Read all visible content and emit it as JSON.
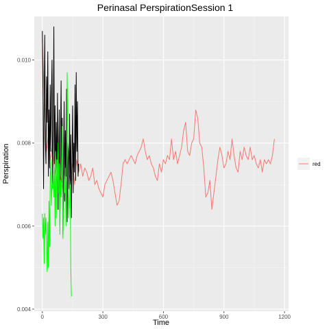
{
  "chart_data": {
    "type": "line",
    "title": "Perinasal PerspirationSession 1",
    "xlabel": "Time",
    "ylabel": "Perspiration",
    "xlim": [
      -40,
      1220
    ],
    "ylim": [
      0.00395,
      0.01105
    ],
    "x_ticks": [
      0,
      300,
      600,
      900,
      1200
    ],
    "x_tick_labels": [
      "0",
      "300",
      "600",
      "900",
      "1200"
    ],
    "y_ticks": [
      0.004,
      0.006,
      0.008,
      0.01
    ],
    "y_tick_labels": [
      "0.004",
      "0.006",
      "0.008",
      "0.010"
    ],
    "grid": true,
    "legend": {
      "position": "right",
      "entries": [
        {
          "label": "red",
          "color": "#F8766D"
        }
      ]
    },
    "series": [
      {
        "color": "#F8766D",
        "x": [
          0,
          10,
          20,
          30,
          40,
          50,
          60,
          70,
          80,
          90,
          100,
          110,
          120,
          130,
          140,
          150,
          160,
          170,
          180,
          190,
          200,
          210,
          220,
          230,
          240,
          250,
          260,
          270,
          280,
          290,
          300,
          310,
          320,
          330,
          340,
          350,
          360,
          370,
          380,
          390,
          400,
          410,
          420,
          430,
          440,
          450,
          460,
          470,
          480,
          490,
          500,
          510,
          520,
          530,
          540,
          550,
          560,
          570,
          580,
          590,
          600,
          610,
          620,
          630,
          640,
          650,
          660,
          670,
          680,
          690,
          700,
          710,
          720,
          730,
          740,
          750,
          760,
          770,
          780,
          790,
          800,
          810,
          820,
          830,
          840,
          850,
          860,
          870,
          880,
          890,
          900,
          910,
          920,
          930,
          940,
          950,
          960,
          970,
          980,
          990,
          1000,
          1010,
          1020,
          1030,
          1040,
          1050,
          1060,
          1070,
          1080,
          1090,
          1100,
          1110,
          1120,
          1130,
          1140,
          1150
        ],
        "y": [
          0.0105,
          0.009,
          0.0078,
          0.0082,
          0.0076,
          0.0079,
          0.0074,
          0.0071,
          0.0078,
          0.0072,
          0.0069,
          0.0074,
          0.0072,
          0.0073,
          0.0071,
          0.0075,
          0.007,
          0.0076,
          0.0073,
          0.0075,
          0.0072,
          0.0074,
          0.0073,
          0.0071,
          0.0072,
          0.0074,
          0.007,
          0.0071,
          0.0069,
          0.0068,
          0.0067,
          0.007,
          0.0071,
          0.0072,
          0.0073,
          0.0071,
          0.0068,
          0.0065,
          0.0066,
          0.007,
          0.0075,
          0.0076,
          0.0075,
          0.0076,
          0.0077,
          0.0076,
          0.0075,
          0.0077,
          0.0078,
          0.0079,
          0.0081,
          0.0078,
          0.0076,
          0.0077,
          0.0075,
          0.0074,
          0.0072,
          0.0071,
          0.0075,
          0.0073,
          0.0076,
          0.0075,
          0.0077,
          0.0076,
          0.0081,
          0.0076,
          0.0078,
          0.0075,
          0.0077,
          0.0079,
          0.0083,
          0.0085,
          0.0078,
          0.0077,
          0.008,
          0.0081,
          0.0088,
          0.0086,
          0.008,
          0.0079,
          0.0074,
          0.0067,
          0.0068,
          0.0071,
          0.0064,
          0.0068,
          0.0072,
          0.0076,
          0.0079,
          0.0077,
          0.0074,
          0.0075,
          0.0078,
          0.0076,
          0.0081,
          0.0077,
          0.0074,
          0.0073,
          0.0078,
          0.0076,
          0.0079,
          0.0077,
          0.0076,
          0.0079,
          0.0076,
          0.0077,
          0.0075,
          0.0074,
          0.0076,
          0.0073,
          0.0076,
          0.0075,
          0.0076,
          0.0075,
          0.0077,
          0.0081
        ]
      },
      {
        "color": "#000000",
        "x": [
          0,
          3,
          6,
          9,
          12,
          15,
          18,
          21,
          24,
          27,
          30,
          33,
          36,
          39,
          42,
          45,
          48,
          51,
          54,
          57,
          60,
          63,
          66,
          69,
          72,
          75,
          78,
          81,
          84,
          87,
          90,
          93,
          96,
          99,
          102,
          105,
          108,
          111,
          114,
          117,
          120,
          123,
          126,
          129,
          132,
          135,
          138,
          141,
          144,
          147,
          150,
          153,
          156,
          159,
          162,
          165,
          168,
          171,
          174,
          177,
          180
        ],
        "y": [
          0.0107,
          0.0092,
          0.0069,
          0.009,
          0.0106,
          0.008,
          0.0075,
          0.0096,
          0.0085,
          0.0102,
          0.0072,
          0.0088,
          0.0074,
          0.0094,
          0.0078,
          0.0091,
          0.01,
          0.007,
          0.0082,
          0.0108,
          0.0075,
          0.0089,
          0.0067,
          0.0085,
          0.0073,
          0.0092,
          0.0064,
          0.0078,
          0.0088,
          0.006,
          0.0082,
          0.0095,
          0.0069,
          0.0086,
          0.0058,
          0.0076,
          0.009,
          0.0066,
          0.0083,
          0.0072,
          0.0093,
          0.0061,
          0.008,
          0.0078,
          0.0069,
          0.0087,
          0.007,
          0.0082,
          0.0062,
          0.0075,
          0.0089,
          0.0068,
          0.008,
          0.0073,
          0.0094,
          0.0071,
          0.0097,
          0.0078,
          0.009,
          0.0072,
          0.0075
        ]
      },
      {
        "color": "#00FF00",
        "x": [
          0,
          3,
          6,
          9,
          12,
          15,
          18,
          21,
          24,
          27,
          30,
          33,
          36,
          39,
          42,
          45,
          48,
          51,
          54,
          57,
          60,
          63,
          66,
          69,
          72,
          75,
          78,
          81,
          84,
          87,
          90,
          93,
          96,
          99,
          102,
          105,
          108,
          111,
          114,
          117,
          120,
          123,
          126,
          129,
          132,
          135,
          138,
          141,
          144
        ],
        "y": [
          0.0063,
          0.0057,
          0.0062,
          0.0051,
          0.0063,
          0.0058,
          0.0062,
          0.0055,
          0.0049,
          0.0061,
          0.005,
          0.0066,
          0.0055,
          0.0072,
          0.0076,
          0.0065,
          0.007,
          0.0069,
          0.0073,
          0.0067,
          0.0074,
          0.006,
          0.0078,
          0.0062,
          0.0076,
          0.0068,
          0.008,
          0.0064,
          0.0075,
          0.0058,
          0.0071,
          0.0067,
          0.0069,
          0.0084,
          0.0057,
          0.0064,
          0.0072,
          0.0068,
          0.0074,
          0.006,
          0.0071,
          0.0097,
          0.008,
          0.0062,
          0.0066,
          0.0071,
          0.0069,
          0.005,
          0.0043
        ]
      }
    ]
  }
}
